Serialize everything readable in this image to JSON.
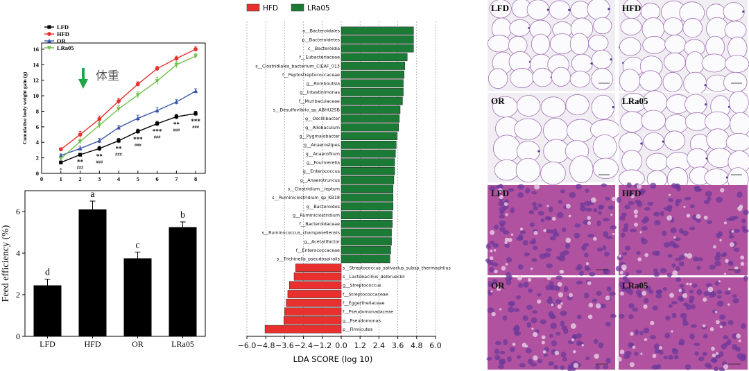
{
  "chart_data": [
    {
      "type": "line",
      "ylabel": "Cumulative body weight gain (g)",
      "xlabel": "",
      "x": [
        1,
        2,
        3,
        4,
        5,
        6,
        7,
        8
      ],
      "xlim": [
        0,
        8.5
      ],
      "ylim": [
        0,
        16.8
      ],
      "xticks": [
        0,
        1,
        2,
        3,
        4,
        5,
        6,
        7,
        8
      ],
      "yticks": [
        0,
        2,
        4,
        6,
        8,
        10,
        12,
        14,
        16
      ],
      "legend": "top-left",
      "series": [
        {
          "name": "LFD",
          "color": "#000000",
          "marker": "square",
          "values": [
            1.4,
            2.4,
            3.2,
            4.2,
            5.4,
            6.4,
            7.3,
            7.7
          ],
          "err": [
            0.2,
            0.2,
            0.3,
            0.3,
            0.3,
            0.3,
            0.3,
            0.3
          ]
        },
        {
          "name": "HFD",
          "color": "#e8312f",
          "marker": "circle",
          "values": [
            3.1,
            5.0,
            7.0,
            9.3,
            11.5,
            13.5,
            14.8,
            16.0
          ],
          "err": [
            0.2,
            0.4,
            0.4,
            0.4,
            0.3,
            0.3,
            0.3,
            0.3
          ]
        },
        {
          "name": "OR",
          "color": "#3a55a8",
          "marker": "triangle",
          "values": [
            2.3,
            3.2,
            4.2,
            5.9,
            7.1,
            8.1,
            9.2,
            10.6
          ],
          "err": [
            0.2,
            0.3,
            0.3,
            0.3,
            0.4,
            0.4,
            0.3,
            0.3
          ]
        },
        {
          "name": "LRa05",
          "color": "#6cbf47",
          "marker": "triangle-down",
          "values": [
            1.9,
            4.1,
            6.2,
            8.3,
            10.1,
            11.9,
            14.0,
            15.1
          ],
          "err": [
            0.2,
            0.3,
            0.4,
            0.4,
            0.4,
            0.5,
            0.4,
            0.3
          ]
        }
      ],
      "significance": [
        {
          "x": 1,
          "top": "",
          "bottom": "*"
        },
        {
          "x": 2,
          "top": "**",
          "bottom": "###"
        },
        {
          "x": 3,
          "top": "**",
          "bottom": "###"
        },
        {
          "x": 4,
          "top": "**",
          "bottom": "###"
        },
        {
          "x": 5,
          "top": "***",
          "bottom": "###"
        },
        {
          "x": 6,
          "top": "***",
          "bottom": "###"
        },
        {
          "x": 7,
          "top": "**",
          "bottom": "###"
        },
        {
          "x": 8,
          "top": "***",
          "bottom": "###"
        }
      ],
      "annotation": {
        "text": "体重",
        "color": "#1fa64a",
        "at_x": 2.5
      }
    },
    {
      "type": "bar",
      "ylabel": "Feed efficiency (%)",
      "xlabel": "",
      "categories": [
        "LFD",
        "HFD",
        "OR",
        "LRa05"
      ],
      "values": [
        2.45,
        6.1,
        3.75,
        5.25
      ],
      "err": [
        0.3,
        0.4,
        0.3,
        0.25
      ],
      "letters": [
        "d",
        "a",
        "c",
        "b"
      ],
      "ylim": [
        0,
        7
      ],
      "yticks": [
        0,
        2,
        4,
        6
      ],
      "color": "#000000"
    },
    {
      "type": "bar",
      "orientation": "horizontal",
      "xlabel": "LDA SCORE (log 10)",
      "xlim": [
        -6.0,
        6.0
      ],
      "xticks": [
        "−6.0",
        "−4.8",
        "−3.6",
        "−2.4",
        "−1.2",
        "0.0",
        "1.2",
        "2.4",
        "3.6",
        "4.8",
        "6.0"
      ],
      "xtick_values": [
        -6.0,
        -4.8,
        -3.6,
        -2.4,
        -1.2,
        0.0,
        1.2,
        2.4,
        3.6,
        4.8,
        6.0
      ],
      "legend": "top-left",
      "groups": [
        {
          "name": "HFD",
          "color": "#e8312f"
        },
        {
          "name": "LRa05",
          "color": "#1b7a36"
        }
      ],
      "taxa": [
        {
          "label": "o__Bacteroidales",
          "value": 4.6,
          "group": "LRa05"
        },
        {
          "label": "p__Bacteroidetes",
          "value": 4.6,
          "group": "LRa05"
        },
        {
          "label": "c__Bacteroidia",
          "value": 4.6,
          "group": "LRa05"
        },
        {
          "label": "f__Eubacteriaceae",
          "value": 4.2,
          "group": "LRa05"
        },
        {
          "label": "s__Clostridiales_bacterium_CIEAF_013",
          "value": 4.05,
          "group": "LRa05"
        },
        {
          "label": "f__Peptostreptococcaceae",
          "value": 4.0,
          "group": "LRa05"
        },
        {
          "label": "g__Romboutsia",
          "value": 3.95,
          "group": "LRa05"
        },
        {
          "label": "g__Intestinimonas",
          "value": 3.95,
          "group": "LRa05"
        },
        {
          "label": "f__Muribaculaceae",
          "value": 3.9,
          "group": "LRa05"
        },
        {
          "label": "s__Desulfovibrio_sp_ABHU2SB",
          "value": 3.75,
          "group": "LRa05"
        },
        {
          "label": "g__Oscillibacter",
          "value": 3.7,
          "group": "LRa05"
        },
        {
          "label": "g__Allobaculum",
          "value": 3.65,
          "group": "LRa05"
        },
        {
          "label": "g__Pygmaiobacter",
          "value": 3.55,
          "group": "LRa05"
        },
        {
          "label": "g__Anaerostipes",
          "value": 3.5,
          "group": "LRa05"
        },
        {
          "label": "g__Anaerofilum",
          "value": 3.45,
          "group": "LRa05"
        },
        {
          "label": "g__Fournierella",
          "value": 3.4,
          "group": "LRa05"
        },
        {
          "label": "g__Enterococcus",
          "value": 3.4,
          "group": "LRa05"
        },
        {
          "label": "g__Anaerotruncus",
          "value": 3.35,
          "group": "LRa05"
        },
        {
          "label": "s__Clostridium__leptum",
          "value": 3.3,
          "group": "LRa05"
        },
        {
          "label": "s__Ruminiclostridium_sp_KB18",
          "value": 3.3,
          "group": "LRa05"
        },
        {
          "label": "g__Bacteroides",
          "value": 3.3,
          "group": "LRa05"
        },
        {
          "label": "g__Ruminiclostridium",
          "value": 3.25,
          "group": "LRa05"
        },
        {
          "label": "f__Bacteroidaceae",
          "value": 3.25,
          "group": "LRa05"
        },
        {
          "label": "s__Ruminococcus_champanellensis",
          "value": 3.2,
          "group": "LRa05"
        },
        {
          "label": "g__Acetatifactor",
          "value": 3.2,
          "group": "LRa05"
        },
        {
          "label": "f__Enterococcaceae",
          "value": 3.15,
          "group": "LRa05"
        },
        {
          "label": "s__Trichinella_pseudospiralis",
          "value": 3.1,
          "group": "LRa05"
        },
        {
          "label": "s__Streptococcus_salivarius_subsp_thermophilus",
          "value": -2.9,
          "group": "HFD"
        },
        {
          "label": "s__Lactobacillus_delbrueckii",
          "value": -3.0,
          "group": "HFD"
        },
        {
          "label": "g__Streptococcus",
          "value": -3.3,
          "group": "HFD"
        },
        {
          "label": "f__Streptococcaceae",
          "value": -3.4,
          "group": "HFD"
        },
        {
          "label": "f__Eggerthellaceae",
          "value": -3.5,
          "group": "HFD"
        },
        {
          "label": "f__Pseudomonadaceae",
          "value": -3.6,
          "group": "HFD"
        },
        {
          "label": "g__Pseudomonas",
          "value": -3.65,
          "group": "HFD"
        },
        {
          "label": "p__Firmicutes",
          "value": -4.85,
          "group": "HFD"
        }
      ]
    }
  ],
  "micrographs": {
    "adipose": [
      "LFD",
      "HFD",
      "OR",
      "LRa05"
    ],
    "liver": [
      "LFD",
      "HFD",
      "OR",
      "LRa05"
    ],
    "adipose_bg": "#f1eef3",
    "adipose_line": "#9f6fb3",
    "liver_bg": "#b0529f"
  }
}
